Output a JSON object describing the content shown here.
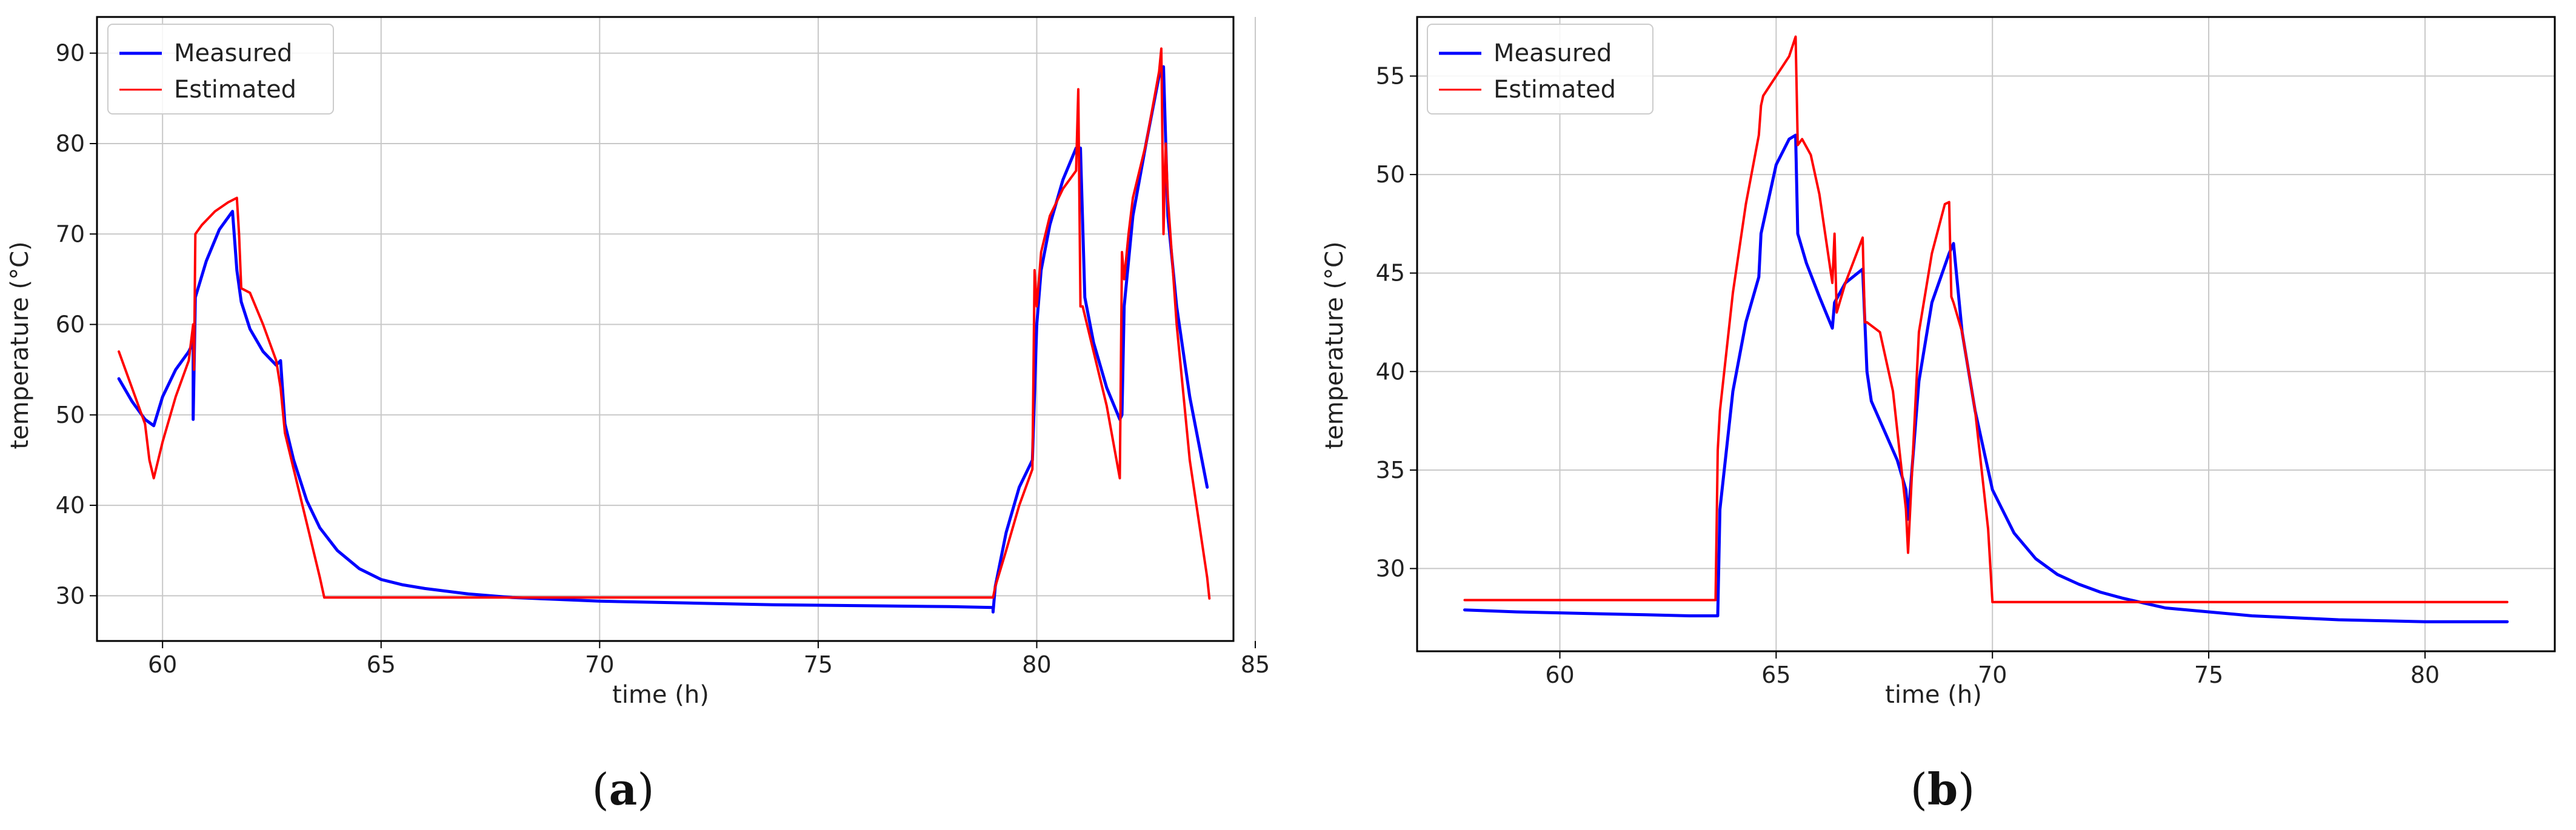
{
  "chart_data": [
    {
      "type": "line",
      "panel_label": "a",
      "xlabel": "time (h)",
      "ylabel": "temperature (°C)",
      "xlim": [
        58.5,
        84.5
      ],
      "ylim": [
        25,
        94
      ],
      "xticks": [
        60,
        65,
        70,
        75,
        80,
        85
      ],
      "yticks": [
        30,
        40,
        50,
        60,
        70,
        80,
        90
      ],
      "grid": true,
      "legend_position": "top-left",
      "series": [
        {
          "name": "Measured",
          "color": "#0000ff",
          "x": [
            59.0,
            59.3,
            59.6,
            59.8,
            60.0,
            60.3,
            60.6,
            60.7,
            60.7,
            60.75,
            61.0,
            61.3,
            61.6,
            61.7,
            61.8,
            62.0,
            62.3,
            62.6,
            62.7,
            62.8,
            63.0,
            63.3,
            63.6,
            64.0,
            64.5,
            65.0,
            65.5,
            66.0,
            67.0,
            68.0,
            69.0,
            70.0,
            72.0,
            74.0,
            76.0,
            78.0,
            79.0,
            79.0,
            79.05,
            79.3,
            79.6,
            79.9,
            80.0,
            80.1,
            80.3,
            80.6,
            80.9,
            81.0,
            81.1,
            81.3,
            81.6,
            81.9,
            81.95,
            82.0,
            82.2,
            82.5,
            82.8,
            82.9,
            83.0,
            83.2,
            83.5,
            83.9
          ],
          "y": [
            54.0,
            51.5,
            49.5,
            48.8,
            52.0,
            55.0,
            57.0,
            58.0,
            49.5,
            63.0,
            67.0,
            70.5,
            72.5,
            66.0,
            62.5,
            59.5,
            57.0,
            55.5,
            56.0,
            49.0,
            45.0,
            40.5,
            37.5,
            35.0,
            33.0,
            31.8,
            31.2,
            30.8,
            30.2,
            29.8,
            29.6,
            29.4,
            29.2,
            29.0,
            28.9,
            28.8,
            28.7,
            28.2,
            31.0,
            37.0,
            42.0,
            45.0,
            60.0,
            66.0,
            71.0,
            76.0,
            79.5,
            79.5,
            63.0,
            58.0,
            53.0,
            49.5,
            50.0,
            62.0,
            72.0,
            80.0,
            87.5,
            88.5,
            72.0,
            62.0,
            52.0,
            42.0
          ]
        },
        {
          "name": "Estimated",
          "color": "#ff0000",
          "x": [
            59.0,
            59.3,
            59.6,
            59.7,
            59.8,
            60.0,
            60.3,
            60.6,
            60.7,
            60.72,
            60.75,
            60.9,
            61.2,
            61.5,
            61.7,
            61.75,
            61.8,
            62.0,
            62.3,
            62.6,
            62.7,
            62.8,
            63.0,
            63.3,
            63.6,
            63.7,
            64.0,
            66.0,
            68.0,
            70.0,
            72.0,
            74.0,
            76.0,
            78.0,
            79.0,
            79.05,
            79.3,
            79.6,
            79.9,
            79.95,
            80.0,
            80.1,
            80.3,
            80.6,
            80.9,
            80.95,
            81.0,
            81.05,
            81.1,
            81.3,
            81.6,
            81.9,
            81.95,
            82.0,
            82.1,
            82.2,
            82.5,
            82.8,
            82.85,
            82.9,
            82.95,
            83.0,
            83.2,
            83.5,
            83.9,
            83.95
          ],
          "y": [
            57.0,
            53.0,
            49.0,
            45.0,
            43.0,
            47.0,
            52.0,
            56.0,
            60.0,
            55.0,
            70.0,
            71.0,
            72.5,
            73.5,
            74.0,
            70.0,
            64.0,
            63.5,
            60.0,
            56.0,
            53.0,
            48.0,
            44.0,
            38.0,
            32.0,
            29.8,
            29.8,
            29.8,
            29.8,
            29.8,
            29.8,
            29.8,
            29.8,
            29.8,
            29.8,
            31.0,
            35.0,
            40.0,
            44.0,
            66.0,
            62.0,
            68.0,
            72.0,
            75.0,
            77.0,
            86.0,
            62.0,
            62.0,
            61.0,
            57.0,
            51.0,
            43.0,
            68.0,
            65.0,
            70.0,
            74.0,
            80.0,
            88.0,
            90.5,
            70.0,
            80.0,
            74.0,
            60.0,
            45.0,
            32.0,
            29.7
          ]
        }
      ]
    },
    {
      "type": "line",
      "panel_label": "b",
      "xlabel": "time (h)",
      "ylabel": "temperature (°C)",
      "xlim": [
        56.7,
        83.0
      ],
      "ylim": [
        25.8,
        58.0
      ],
      "xticks": [
        60,
        65,
        70,
        75,
        80
      ],
      "yticks": [
        30,
        35,
        40,
        45,
        50,
        55
      ],
      "grid": true,
      "legend_position": "top-left",
      "series": [
        {
          "name": "Measured",
          "color": "#0000ff",
          "x": [
            57.8,
            59.0,
            60.0,
            61.0,
            62.0,
            63.0,
            63.65,
            63.7,
            64.0,
            64.3,
            64.6,
            64.65,
            65.0,
            65.3,
            65.45,
            65.5,
            65.7,
            66.0,
            66.3,
            66.35,
            66.6,
            67.0,
            67.1,
            67.2,
            67.5,
            67.8,
            68.0,
            68.05,
            68.3,
            68.6,
            69.0,
            69.1,
            69.3,
            69.6,
            70.0,
            70.5,
            71.0,
            71.5,
            72.0,
            72.5,
            73.0,
            74.0,
            75.0,
            76.0,
            77.0,
            78.0,
            79.0,
            80.0,
            81.0,
            81.9
          ],
          "y": [
            27.9,
            27.8,
            27.75,
            27.7,
            27.65,
            27.6,
            27.6,
            33.0,
            39.0,
            42.5,
            44.8,
            47.0,
            50.5,
            51.8,
            52.0,
            47.0,
            45.5,
            43.8,
            42.2,
            43.5,
            44.5,
            45.2,
            40.0,
            38.5,
            37.0,
            35.5,
            34.0,
            32.5,
            39.5,
            43.5,
            46.0,
            46.5,
            42.0,
            38.0,
            34.0,
            31.8,
            30.5,
            29.7,
            29.2,
            28.8,
            28.5,
            28.0,
            27.8,
            27.6,
            27.5,
            27.4,
            27.35,
            27.3,
            27.3,
            27.3
          ]
        },
        {
          "name": "Estimated",
          "color": "#ff0000",
          "x": [
            57.8,
            59.0,
            60.0,
            61.0,
            62.0,
            63.0,
            63.6,
            63.65,
            63.7,
            64.0,
            64.3,
            64.6,
            64.65,
            64.7,
            65.0,
            65.3,
            65.45,
            65.5,
            65.6,
            65.8,
            66.0,
            66.3,
            66.35,
            66.4,
            66.6,
            67.0,
            67.05,
            67.1,
            67.4,
            67.7,
            68.0,
            68.05,
            68.3,
            68.6,
            68.9,
            69.0,
            69.05,
            69.1,
            69.3,
            69.6,
            69.9,
            70.0,
            70.05,
            71.0,
            72.0,
            73.0,
            74.0,
            75.0,
            76.0,
            77.0,
            78.0,
            79.0,
            80.0,
            81.0,
            81.9
          ],
          "y": [
            28.4,
            28.4,
            28.4,
            28.4,
            28.4,
            28.4,
            28.4,
            36.0,
            38.0,
            44.0,
            48.5,
            52.0,
            53.5,
            54.0,
            55.0,
            56.0,
            57.0,
            51.5,
            51.8,
            51.0,
            49.0,
            44.5,
            47.0,
            43.0,
            44.5,
            46.8,
            42.5,
            42.5,
            42.0,
            39.0,
            33.0,
            30.8,
            42.0,
            46.0,
            48.5,
            48.6,
            43.8,
            43.5,
            42.0,
            38.0,
            32.0,
            28.3,
            28.3,
            28.3,
            28.3,
            28.3,
            28.3,
            28.3,
            28.3,
            28.3,
            28.3,
            28.3,
            28.3,
            28.3,
            28.3
          ]
        }
      ]
    }
  ]
}
